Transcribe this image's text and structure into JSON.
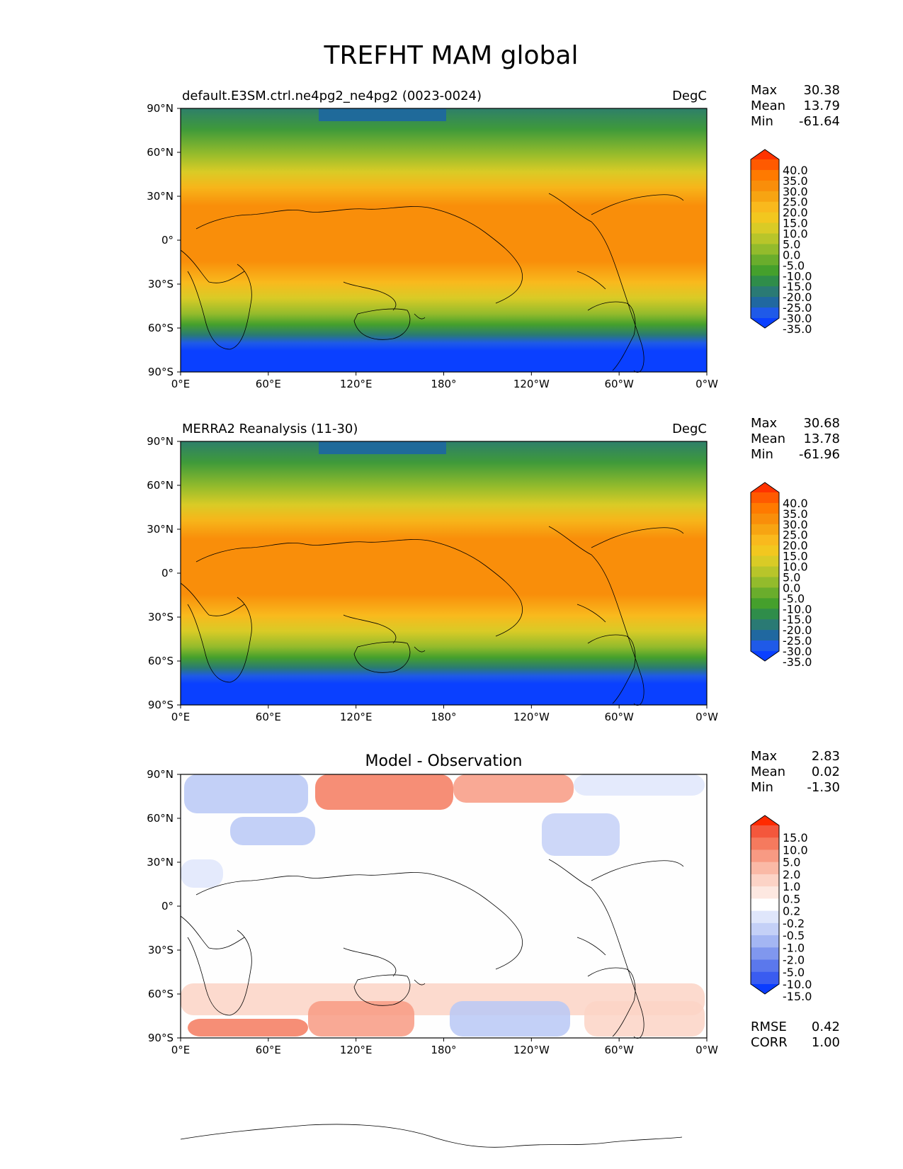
{
  "figure": {
    "title": "TREFHT MAM global"
  },
  "axes": {
    "lat_ticks": [
      "90°N",
      "60°N",
      "30°N",
      "0°",
      "30°S",
      "60°S",
      "90°S"
    ],
    "lon_ticks": [
      "0°E",
      "60°E",
      "120°E",
      "180°",
      "120°W",
      "60°W",
      "0°W"
    ]
  },
  "panels": [
    {
      "title_left": "default.E3SM.ctrl.ne4pg2_ne4pg2 (0023-0024)",
      "title_center": "",
      "units": "DegC",
      "stats": [
        {
          "label": "Max",
          "value": "30.38"
        },
        {
          "label": "Mean",
          "value": "13.79"
        },
        {
          "label": "Min",
          "value": "-61.64"
        }
      ],
      "colorbar": {
        "labels": [
          "40.0",
          "35.0",
          "30.0",
          "25.0",
          "20.0",
          "15.0",
          "10.0",
          "5.0",
          "0.0",
          "-5.0",
          "-10.0",
          "-15.0",
          "-20.0",
          "-25.0",
          "-30.0",
          "-35.0"
        ],
        "colors": [
          "#ff3300",
          "#ff5a00",
          "#ff7a00",
          "#f98e0a",
          "#f7a412",
          "#f9b91d",
          "#f2c71f",
          "#d9cb26",
          "#b8c52a",
          "#93bb2c",
          "#6aad2c",
          "#45a02c",
          "#2f8d4a",
          "#2a7a74",
          "#2068a0",
          "#1f5ae8",
          "#0a40ff"
        ]
      },
      "extra_stats": [],
      "field": "model"
    },
    {
      "title_left": "MERRA2 Reanalysis (11-30)",
      "title_center": "",
      "units": "DegC",
      "stats": [
        {
          "label": "Max",
          "value": "30.68"
        },
        {
          "label": "Mean",
          "value": "13.78"
        },
        {
          "label": "Min",
          "value": "-61.96"
        }
      ],
      "colorbar": {
        "labels": [
          "40.0",
          "35.0",
          "30.0",
          "25.0",
          "20.0",
          "15.0",
          "10.0",
          "5.0",
          "0.0",
          "-5.0",
          "-10.0",
          "-15.0",
          "-20.0",
          "-25.0",
          "-30.0",
          "-35.0"
        ],
        "colors": [
          "#ff3300",
          "#ff5a00",
          "#ff7a00",
          "#f98e0a",
          "#f7a412",
          "#f9b91d",
          "#f2c71f",
          "#d9cb26",
          "#b8c52a",
          "#93bb2c",
          "#6aad2c",
          "#45a02c",
          "#2f8d4a",
          "#2a7a74",
          "#2068a0",
          "#1f5ae8",
          "#0a40ff"
        ]
      },
      "extra_stats": [],
      "field": "obs"
    },
    {
      "title_left": "",
      "title_center": "Model - Observation",
      "units": "",
      "stats": [
        {
          "label": "Max",
          "value": "2.83"
        },
        {
          "label": "Mean",
          "value": "0.02"
        },
        {
          "label": "Min",
          "value": "-1.30"
        }
      ],
      "colorbar": {
        "labels": [
          "15.0",
          "10.0",
          "5.0",
          "2.0",
          "1.0",
          "0.5",
          "0.2",
          "-0.2",
          "-0.5",
          "-1.0",
          "-2.0",
          "-5.0",
          "-10.0",
          "-15.0"
        ],
        "colors": [
          "#ff2a00",
          "#f4573c",
          "#f57a5e",
          "#f89a83",
          "#fab9a6",
          "#fcd3c6",
          "#fde8e1",
          "#ffffff",
          "#dfe6fb",
          "#c4d0f7",
          "#a4b6f3",
          "#8097ee",
          "#5b78ec",
          "#3a5cf0",
          "#0a3cff"
        ]
      },
      "extra_stats": [
        {
          "label": "RMSE",
          "value": "0.42"
        },
        {
          "label": "CORR",
          "value": "1.00"
        }
      ],
      "field": "diff"
    }
  ]
}
